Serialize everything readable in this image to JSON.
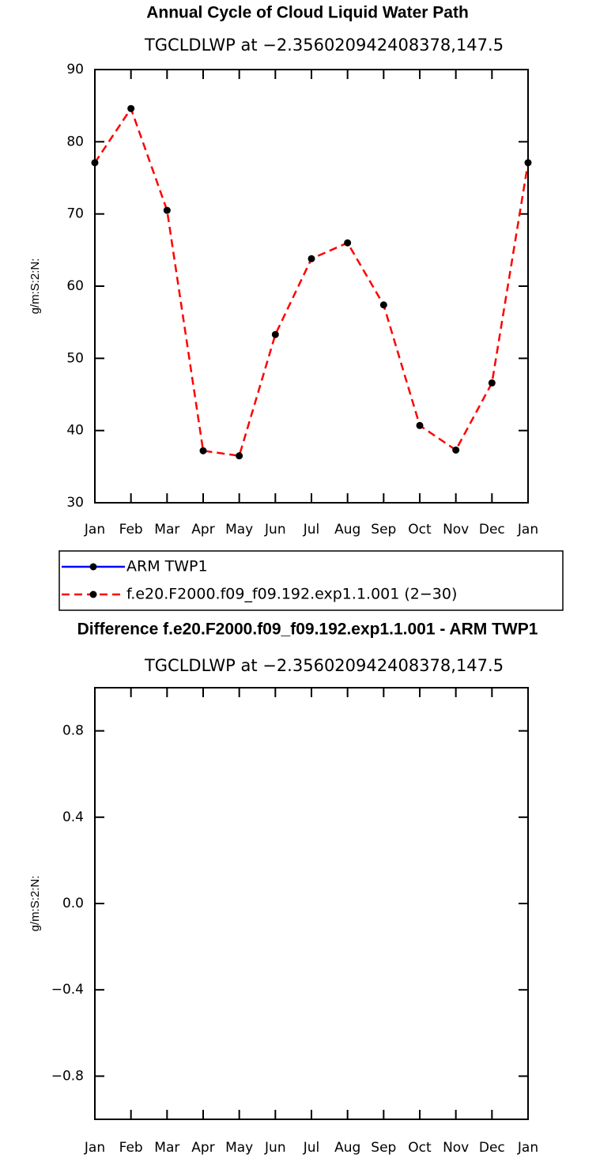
{
  "chart_data": [
    {
      "type": "line",
      "title": "Annual Cycle of Cloud Liquid Water Path",
      "subtitle": "TGCLDLWP at −2.356020942408378,147.5",
      "y_label": "g/m:S:2:N:",
      "categories": [
        "Jan",
        "Feb",
        "Mar",
        "Apr",
        "May",
        "Jun",
        "Jul",
        "Aug",
        "Sep",
        "Oct",
        "Nov",
        "Dec",
        "Jan"
      ],
      "series": [
        {
          "name": "ARM TWP1",
          "color": "#0000ff",
          "line_style": "solid",
          "values": [
            null,
            null,
            null,
            null,
            null,
            null,
            null,
            null,
            null,
            null,
            null,
            null,
            null
          ]
        },
        {
          "name": "f.e20.F2000.f09_f09.192.exp1.1.001 (2−30)",
          "color": "#ff0000",
          "line_style": "dashed",
          "values": [
            77.1,
            84.6,
            70.5,
            37.2,
            36.5,
            53.3,
            63.8,
            66.0,
            57.4,
            40.7,
            37.3,
            46.6,
            77.1
          ]
        }
      ],
      "ylim": [
        30,
        90
      ],
      "yticks": [
        30,
        40,
        50,
        60,
        70,
        80,
        90
      ],
      "legend": "bottom"
    },
    {
      "type": "line",
      "title": "Difference f.e20.F2000.f09_f09.192.exp1.1.001 - ARM TWP1",
      "subtitle": "TGCLDLWP at −2.356020942408378,147.5",
      "y_label": "g/m:S:2:N:",
      "categories": [
        "Jan",
        "Feb",
        "Mar",
        "Apr",
        "May",
        "Jun",
        "Jul",
        "Aug",
        "Sep",
        "Oct",
        "Nov",
        "Dec",
        "Jan"
      ],
      "series": [],
      "ylim": [
        -1,
        1
      ],
      "yticks": [
        {
          "value": -0.8,
          "label": "−0.8"
        },
        {
          "value": -0.4,
          "label": "−0.4"
        },
        {
          "value": 0,
          "label": "0.0"
        },
        0.4,
        0.8
      ]
    }
  ]
}
